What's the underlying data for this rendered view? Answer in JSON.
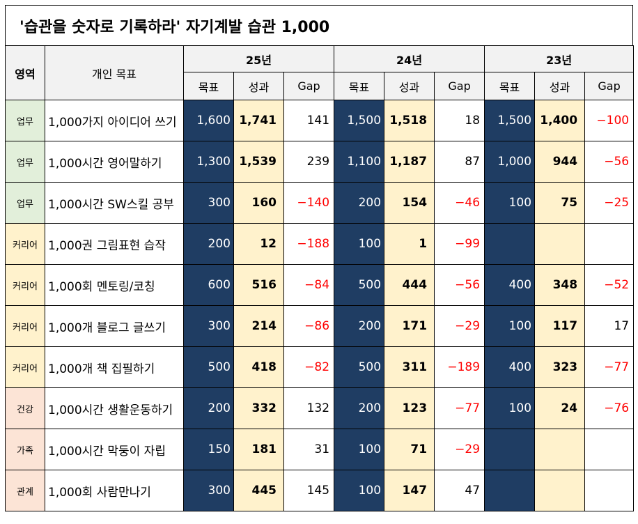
{
  "title": "'습관을 숫자로 기록하라'  자기계발 습관 1,000",
  "headers": {
    "area": "영역",
    "goal": "개인 목표",
    "years": [
      "25년",
      "24년",
      "23년"
    ],
    "sub": [
      "목표",
      "성과",
      "Gap"
    ]
  },
  "colors": {
    "target_bg": "#1f3d63",
    "result_bg": "#fff2cc",
    "work_bg": "#e2efda",
    "career_bg": "#fff2cc",
    "other_bg": "#fce4d6",
    "negative": "#ff0000"
  },
  "rows": [
    {
      "area": "업무",
      "goal": "1,000가지 아이디어 쓰기",
      "y25": [
        "1,600",
        "1,741",
        "141"
      ],
      "y24": [
        "1,500",
        "1,518",
        "18"
      ],
      "y23": [
        "1,500",
        "1,400",
        "−100"
      ]
    },
    {
      "area": "업무",
      "goal": "1,000시간 영어말하기",
      "y25": [
        "1,300",
        "1,539",
        "239"
      ],
      "y24": [
        "1,100",
        "1,187",
        "87"
      ],
      "y23": [
        "1,000",
        "944",
        "−56"
      ]
    },
    {
      "area": "업무",
      "goal": "1,000시간 SW스킬 공부",
      "y25": [
        "300",
        "160",
        "−140"
      ],
      "y24": [
        "200",
        "154",
        "−46"
      ],
      "y23": [
        "100",
        "75",
        "−25"
      ]
    },
    {
      "area": "커리어",
      "goal": "1,000권 그림표현 습작",
      "y25": [
        "200",
        "12",
        "−188"
      ],
      "y24": [
        "100",
        "1",
        "−99"
      ],
      "y23": [
        "",
        "",
        ""
      ]
    },
    {
      "area": "커리어",
      "goal": "1,000회 멘토링/코칭",
      "y25": [
        "600",
        "516",
        "−84"
      ],
      "y24": [
        "500",
        "444",
        "−56"
      ],
      "y23": [
        "400",
        "348",
        "−52"
      ]
    },
    {
      "area": "커리어",
      "goal": "1,000개 블로그 글쓰기",
      "y25": [
        "300",
        "214",
        "−86"
      ],
      "y24": [
        "200",
        "171",
        "−29"
      ],
      "y23": [
        "100",
        "117",
        "17"
      ]
    },
    {
      "area": "커리어",
      "goal": "1,000개 책 집필하기",
      "y25": [
        "500",
        "418",
        "−82"
      ],
      "y24": [
        "500",
        "311",
        "−189"
      ],
      "y23": [
        "400",
        "323",
        "−77"
      ]
    },
    {
      "area": "건강",
      "goal": "1,000시간 생활운동하기",
      "y25": [
        "200",
        "332",
        "132"
      ],
      "y24": [
        "200",
        "123",
        "−77"
      ],
      "y23": [
        "100",
        "24",
        "−76"
      ]
    },
    {
      "area": "가족",
      "goal": "1,000시간 막둥이 자립",
      "y25": [
        "150",
        "181",
        "31"
      ],
      "y24": [
        "100",
        "71",
        "−29"
      ],
      "y23": [
        "",
        "",
        ""
      ]
    },
    {
      "area": "관계",
      "goal": "1,000회 사람만나기",
      "y25": [
        "300",
        "445",
        "145"
      ],
      "y24": [
        "100",
        "147",
        "47"
      ],
      "y23": [
        "",
        "",
        ""
      ]
    }
  ]
}
